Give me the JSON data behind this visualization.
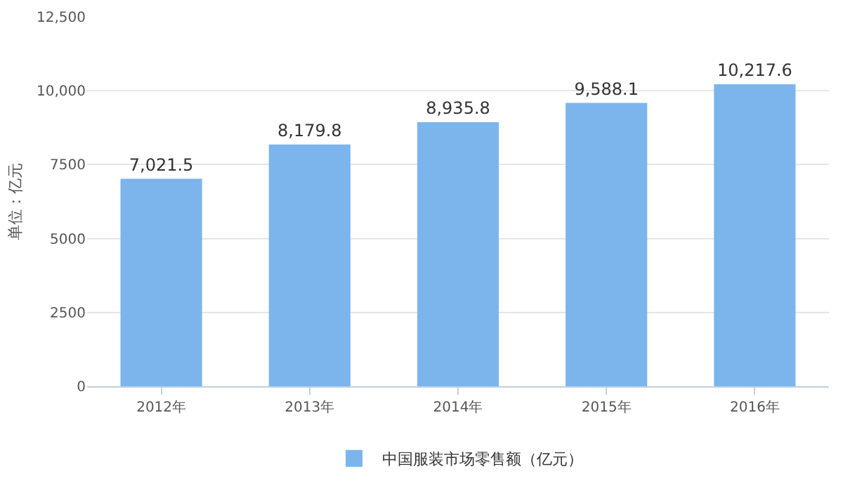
{
  "chart_data": {
    "type": "bar",
    "ylabel": "单位：亿元",
    "categories": [
      "2012年",
      "2013年",
      "2014年",
      "2015年",
      "2016年"
    ],
    "series": [
      {
        "name": "中国服装市场零售额（亿元）",
        "color": "#7cb5ec",
        "values": [
          7021.5,
          8179.8,
          8935.8,
          9588.1,
          10217.6
        ],
        "value_labels": [
          "7,021.5",
          "8,179.8",
          "8,935.8",
          "9,588.1",
          "10,217.6"
        ]
      }
    ],
    "ylim": [
      0,
      12500
    ],
    "yticks": [
      0,
      2500,
      5000,
      7500,
      {
        "value": 10000,
        "label": "10,000"
      },
      {
        "value": 12500,
        "label": "12,500"
      }
    ],
    "grid": "y",
    "legend": "bottom"
  }
}
